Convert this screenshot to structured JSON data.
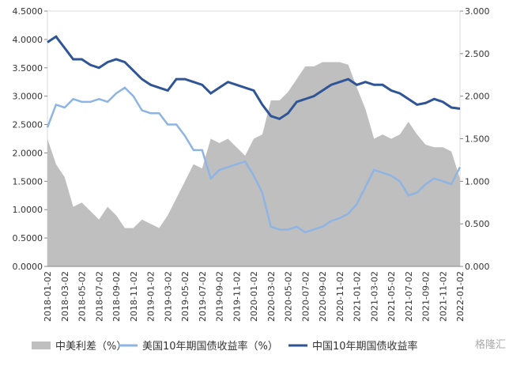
{
  "chart_data": {
    "type": "line",
    "categories": [
      "2018-01-02",
      null,
      "2018-03-02",
      null,
      "2018-05-02",
      null,
      "2018-07-02",
      null,
      "2018-09-02",
      null,
      "2018-11-02",
      null,
      "2019-01-02",
      null,
      "2019-03-02",
      null,
      "2019-05-02",
      null,
      "2019-07-02",
      null,
      "2019-09-02",
      null,
      "2019-11-02",
      null,
      "2020-01-02",
      null,
      "2020-03-02",
      null,
      "2020-05-02",
      null,
      "2020-07-02",
      null,
      "2020-09-02",
      null,
      "2020-11-02",
      null,
      "2021-01-02",
      null,
      "2021-03-02",
      null,
      "2021-05-02",
      null,
      "2021-07-02",
      null,
      "2021-09-02",
      null,
      "2021-11-02",
      null,
      "2022-01-02"
    ],
    "series": [
      {
        "name": "中美利差（%）",
        "type": "area",
        "axis": "y2",
        "color": "#bfbfbf",
        "values": [
          1.5,
          1.2,
          1.05,
          0.7,
          0.75,
          0.65,
          0.55,
          0.7,
          0.6,
          0.45,
          0.45,
          0.55,
          0.5,
          0.45,
          0.6,
          0.8,
          1.0,
          1.2,
          1.15,
          1.5,
          1.45,
          1.5,
          1.4,
          1.3,
          1.5,
          1.55,
          1.95,
          1.95,
          2.05,
          2.2,
          2.35,
          2.35,
          2.4,
          2.4,
          2.4,
          2.37,
          2.1,
          1.85,
          1.5,
          1.55,
          1.5,
          1.55,
          1.7,
          1.55,
          1.43,
          1.4,
          1.4,
          1.35,
          1.03
        ]
      },
      {
        "name": "美国10年期国债收益率（%）",
        "type": "line",
        "color": "#8eb4e3",
        "values": [
          2.45,
          2.85,
          2.8,
          2.95,
          2.9,
          2.9,
          2.95,
          2.9,
          3.05,
          3.15,
          3.0,
          2.75,
          2.7,
          2.7,
          2.5,
          2.5,
          2.3,
          2.05,
          2.05,
          1.55,
          1.7,
          1.75,
          1.8,
          1.85,
          1.6,
          1.3,
          0.7,
          0.65,
          0.65,
          0.7,
          0.6,
          0.65,
          0.7,
          0.8,
          0.85,
          0.93,
          1.1,
          1.4,
          1.7,
          1.65,
          1.6,
          1.5,
          1.25,
          1.3,
          1.45,
          1.55,
          1.5,
          1.45,
          1.75
        ]
      },
      {
        "name": "中国10年期国债收益率",
        "type": "line",
        "color": "#2f5597",
        "values": [
          3.95,
          4.05,
          3.85,
          3.65,
          3.65,
          3.55,
          3.5,
          3.6,
          3.65,
          3.6,
          3.45,
          3.3,
          3.2,
          3.15,
          3.1,
          3.3,
          3.3,
          3.25,
          3.2,
          3.05,
          3.15,
          3.25,
          3.2,
          3.15,
          3.1,
          2.85,
          2.65,
          2.6,
          2.7,
          2.9,
          2.95,
          3.0,
          3.1,
          3.2,
          3.25,
          3.3,
          3.2,
          3.25,
          3.2,
          3.2,
          3.1,
          3.05,
          2.95,
          2.85,
          2.88,
          2.95,
          2.9,
          2.8,
          2.78
        ]
      }
    ],
    "ylim": [
      0,
      4.5
    ],
    "yticks": [
      {
        "value": 0,
        "label": "0.0000"
      },
      {
        "value": 0.5,
        "label": "0.5000"
      },
      {
        "value": 1,
        "label": "1.0000"
      },
      {
        "value": 1.5,
        "label": "1.5000"
      },
      {
        "value": 2,
        "label": "2.0000"
      },
      {
        "value": 2.5,
        "label": "2.5000"
      },
      {
        "value": 3,
        "label": "3.0000"
      },
      {
        "value": 3.5,
        "label": "3.5000"
      },
      {
        "value": 4,
        "label": "4.0000"
      },
      {
        "value": 4.5,
        "label": "4.5000"
      }
    ],
    "y2lim": [
      0,
      3
    ],
    "y2ticks": [
      {
        "value": 0,
        "label": "0.000"
      },
      {
        "value": 0.5,
        "label": "0.500"
      },
      {
        "value": 1,
        "label": "1.000"
      },
      {
        "value": 1.5,
        "label": "1.500"
      },
      {
        "value": 2,
        "label": "2.000"
      },
      {
        "value": 2.5,
        "label": "2.500"
      },
      {
        "value": 3,
        "label": "3.000"
      }
    ],
    "legend": "bottom",
    "watermark": "格隆汇"
  }
}
